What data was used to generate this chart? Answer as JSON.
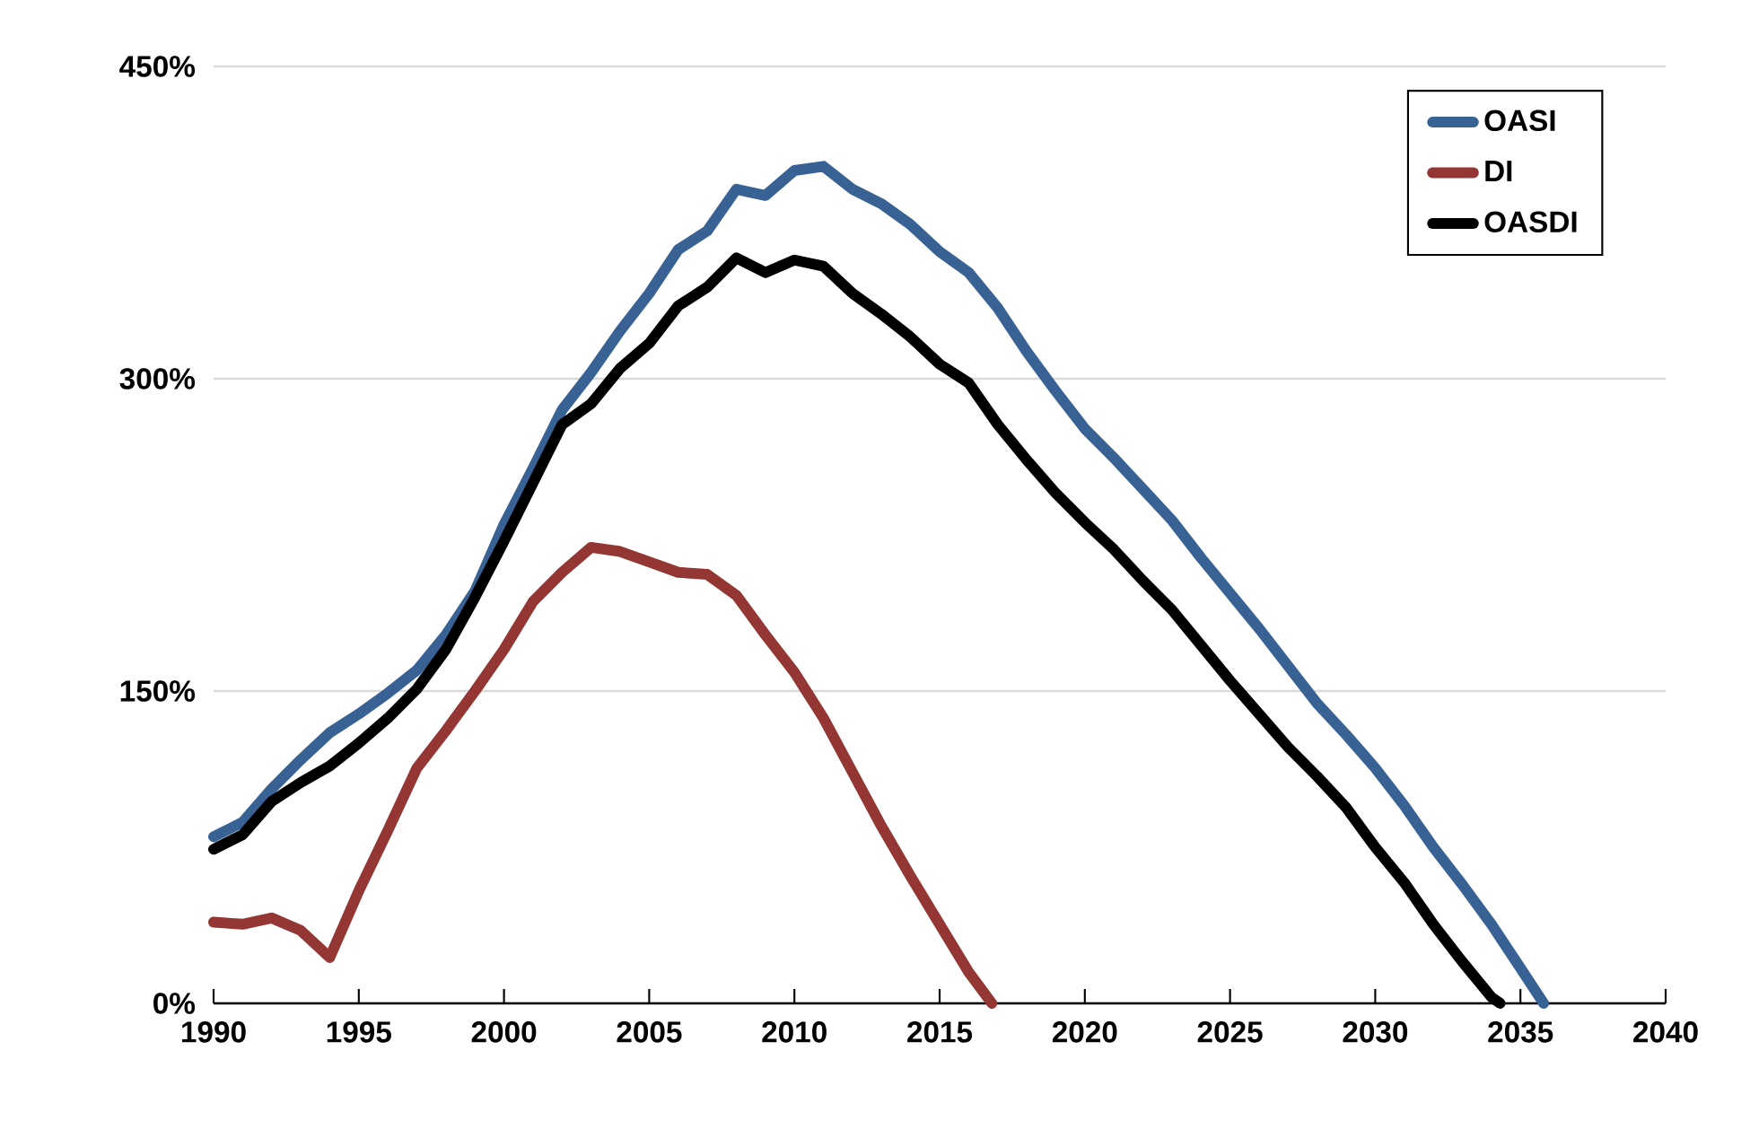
{
  "chart_data": {
    "type": "line",
    "xlim": [
      1990,
      2040
    ],
    "ylim": [
      0,
      450
    ],
    "xticks": [
      1990,
      1995,
      2000,
      2005,
      2010,
      2015,
      2020,
      2025,
      2030,
      2035,
      2040
    ],
    "yticks": [
      {
        "value": 0,
        "label": "0%"
      },
      {
        "value": 150,
        "label": "150%"
      },
      {
        "value": 300,
        "label": "300%"
      },
      {
        "value": 450,
        "label": "450%"
      }
    ],
    "grid": "y",
    "legend": "top right",
    "marker": "none",
    "line_style": "solid",
    "series": [
      {
        "name": "OASI",
        "color": "#386194",
        "x": [
          1990,
          1991,
          1992,
          1993,
          1994,
          1995,
          1996,
          1997,
          1998,
          1999,
          2000,
          2001,
          2002,
          2003,
          2004,
          2005,
          2006,
          2007,
          2008,
          2009,
          2010,
          2011,
          2012,
          2013,
          2014,
          2015,
          2016,
          2017,
          2018,
          2019,
          2020,
          2021,
          2022,
          2023,
          2024,
          2025,
          2026,
          2027,
          2028,
          2029,
          2030,
          2031,
          2032,
          2033,
          2034,
          2035,
          2035.8
        ],
        "values": [
          80,
          87,
          103,
          117,
          130,
          139,
          149,
          160,
          177,
          198,
          230,
          257,
          285,
          303,
          323,
          341,
          362,
          371,
          391,
          388,
          400,
          402,
          391,
          384,
          374,
          361,
          351,
          334,
          313,
          294,
          276,
          262,
          247,
          232,
          214,
          197,
          180,
          162,
          144,
          129,
          113,
          95,
          75,
          57,
          38,
          17,
          0
        ]
      },
      {
        "name": "DI",
        "color": "#943634",
        "x": [
          1990,
          1991,
          1992,
          1993,
          1994,
          1995,
          1996,
          1997,
          1998,
          1999,
          2000,
          2001,
          2002,
          2003,
          2004,
          2005,
          2006,
          2007,
          2008,
          2009,
          2010,
          2011,
          2012,
          2013,
          2014,
          2015,
          2016,
          2016.8
        ],
        "values": [
          39,
          38,
          41,
          35,
          22,
          54,
          83,
          113,
          131,
          150,
          170,
          193,
          207,
          219,
          217,
          212,
          207,
          206,
          196,
          177,
          159,
          137,
          111,
          85,
          61,
          38,
          15,
          0
        ]
      },
      {
        "name": "OASDI",
        "color": "#000000",
        "x": [
          1990,
          1991,
          1992,
          1993,
          1994,
          1995,
          1996,
          1997,
          1998,
          1999,
          2000,
          2001,
          2002,
          2003,
          2004,
          2005,
          2006,
          2007,
          2008,
          2009,
          2010,
          2011,
          2012,
          2013,
          2014,
          2015,
          2016,
          2017,
          2018,
          2019,
          2020,
          2021,
          2022,
          2023,
          2024,
          2025,
          2026,
          2027,
          2028,
          2029,
          2030,
          2031,
          2032,
          2033,
          2034,
          2034.3
        ],
        "values": [
          74,
          81,
          97,
          106,
          114,
          125,
          137,
          151,
          170,
          195,
          222,
          250,
          278,
          288,
          305,
          317,
          335,
          344,
          358,
          351,
          357,
          354,
          341,
          331,
          320,
          307,
          298,
          278,
          261,
          245,
          231,
          218,
          203,
          189,
          172,
          155,
          139,
          123,
          109,
          94,
          75,
          58,
          38,
          20,
          3,
          0
        ]
      }
    ]
  }
}
